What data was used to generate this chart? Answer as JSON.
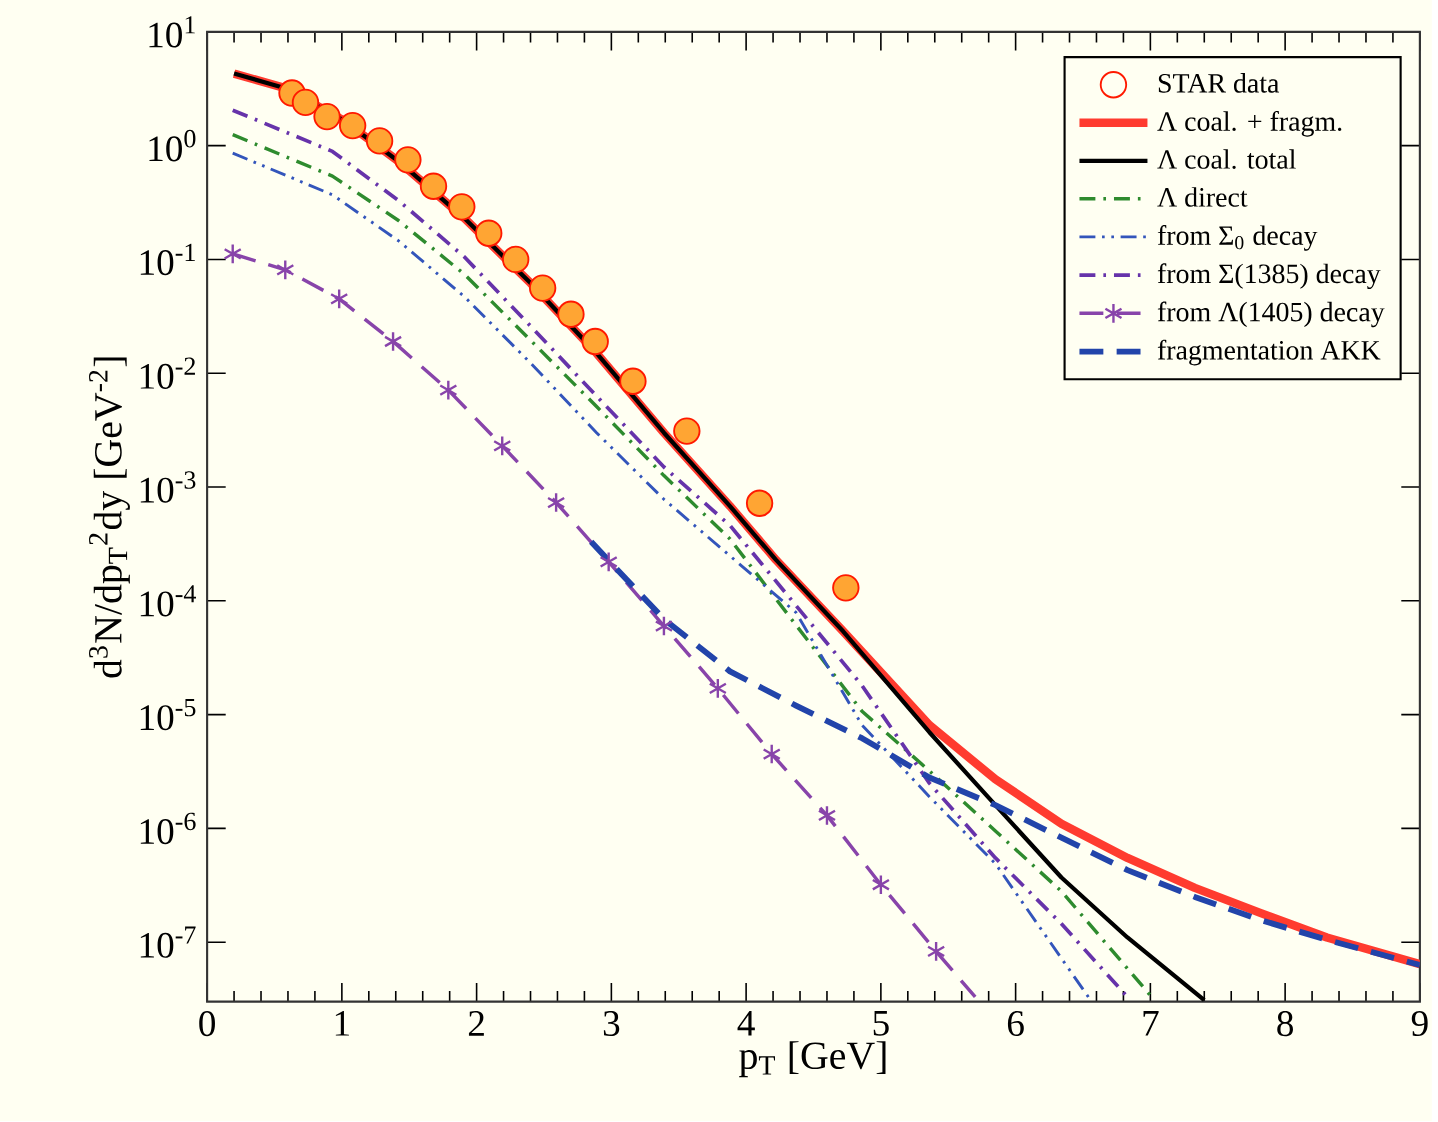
{
  "chart_data": {
    "type": "line",
    "xlabel": "p$_{T}$ [GeV]",
    "ylabel": "d$^{3}$N/dp$_{T}$$^{2}$dy [GeV$^{-2}$]",
    "xlim": [
      0,
      9
    ],
    "xticks": [
      0,
      1,
      2,
      3,
      4,
      5,
      6,
      7,
      8,
      9
    ],
    "ylim": [
      3e-08,
      10
    ],
    "log": "y",
    "yticks": [
      {
        "value": 10,
        "label": "10$^{1}$"
      },
      {
        "value": 1,
        "label": "10$^{0}$"
      },
      {
        "value": 0.1,
        "label": "10$^{-1}$"
      },
      {
        "value": 0.01,
        "label": "10$^{-2}$"
      },
      {
        "value": 0.001,
        "label": "10$^{-3}$"
      },
      {
        "value": 0.0001,
        "label": "10$^{-4}$"
      },
      {
        "value": 1e-05,
        "label": "10$^{-5}$"
      },
      {
        "value": 1e-06,
        "label": "10$^{-6}$"
      },
      {
        "value": 1e-07,
        "label": "10$^{-7}$"
      }
    ],
    "grid": false,
    "legend": "top right",
    "series": [
      {
        "name": "STAR data",
        "type": "scatter",
        "marker": "circle",
        "color": "#ffa533",
        "x": [
          0.63,
          0.73,
          0.89,
          1.08,
          1.28,
          1.49,
          1.68,
          1.89,
          2.09,
          2.29,
          2.49,
          2.7,
          2.88,
          3.16,
          3.56,
          4.1,
          4.74
        ],
        "values": [
          2.9,
          2.4,
          1.8,
          1.5,
          1.1,
          0.75,
          0.44,
          0.29,
          0.17,
          0.1,
          0.056,
          0.033,
          0.019,
          0.0085,
          0.0031,
          0.00072,
          0.00013
        ]
      },
      {
        "name": "Λ coal. + fragm.",
        "line_style": "solid",
        "color": "#ff3b2f",
        "x": [
          0.2,
          0.58,
          1.0,
          1.42,
          1.91,
          2.4,
          2.89,
          3.39,
          3.88,
          4.22,
          4.72,
          5.36,
          5.85,
          6.34,
          6.83,
          7.33,
          7.82,
          8.31,
          9.0
        ],
        "values": [
          4.3,
          3.2,
          1.7,
          0.73,
          0.23,
          0.062,
          0.015,
          0.003,
          0.00068,
          0.00023,
          5.4e-05,
          8.1e-06,
          2.7e-06,
          1.1e-06,
          5.5e-07,
          3e-07,
          1.8e-07,
          1.1e-07,
          6.4e-08
        ]
      },
      {
        "name": "Λ coal. total",
        "line_style": "solid",
        "color": "#000000",
        "x": [
          0.2,
          0.58,
          1.0,
          1.42,
          1.91,
          2.4,
          2.89,
          3.39,
          3.88,
          4.22,
          4.72,
          5.36,
          5.85,
          6.34,
          6.83,
          7.4
        ],
        "values": [
          4.3,
          3.2,
          1.7,
          0.73,
          0.23,
          0.062,
          0.015,
          0.003,
          0.00068,
          0.00023,
          5.4e-05,
          7e-06,
          1.6e-06,
          3.7e-07,
          1.1e-07,
          3.1e-08
        ]
      },
      {
        "name": "Λ direct",
        "line_style": "dashdot",
        "color": "#2e8b2e",
        "x": [
          0.19,
          0.93,
          1.42,
          1.91,
          2.4,
          2.89,
          3.39,
          3.88,
          4.86,
          5.36,
          5.85,
          6.34,
          7.03
        ],
        "values": [
          1.25,
          0.54,
          0.22,
          0.074,
          0.0195,
          0.0051,
          0.00126,
          0.00035,
          1.07e-05,
          3.2e-06,
          9.5e-07,
          2.8e-07,
          3.1e-08
        ]
      },
      {
        "name": "from Σ$_{0}$ decay",
        "line_style": "dashdotdot",
        "color": "#3355bb",
        "x": [
          0.19,
          0.93,
          1.42,
          1.91,
          2.4,
          2.89,
          3.39,
          4.37,
          4.86,
          5.36,
          5.85,
          6.54
        ],
        "values": [
          0.86,
          0.37,
          0.146,
          0.047,
          0.0123,
          0.003,
          0.00078,
          7.9e-05,
          8.1e-06,
          1.9e-06,
          4.9e-07,
          3.3e-08
        ]
      },
      {
        "name": "from Σ(1385) decay",
        "line_style": "dashdot",
        "color": "#6633aa",
        "x": [
          0.19,
          0.93,
          1.42,
          1.91,
          2.4,
          2.89,
          3.39,
          3.88,
          4.86,
          5.36,
          5.85,
          6.34,
          6.83
        ],
        "values": [
          2.05,
          0.89,
          0.33,
          0.105,
          0.026,
          0.0063,
          0.0015,
          0.00046,
          1.8e-05,
          2.5e-06,
          5.5e-07,
          1.45e-07,
          3.3e-08
        ]
      },
      {
        "name": "from Λ(1405) decay",
        "line_style": "dashed",
        "marker": "cross",
        "color": "#8844aa",
        "x": [
          0.19,
          0.58,
          0.98,
          1.38,
          1.79,
          2.19,
          2.59,
          2.98,
          3.39,
          3.79,
          4.19,
          4.6,
          5.0,
          5.41,
          5.7
        ],
        "values": [
          0.112,
          0.081,
          0.045,
          0.019,
          0.0071,
          0.0023,
          0.00073,
          0.00022,
          6e-05,
          1.7e-05,
          4.5e-06,
          1.3e-06,
          3.2e-07,
          8.3e-08,
          3.3e-08
        ]
      },
      {
        "name": "fragmentation AKK",
        "line_style": "dashed",
        "color": "#2244aa",
        "x": [
          2.85,
          3.39,
          3.88,
          4.37,
          4.86,
          5.36,
          5.85,
          6.34,
          6.83,
          7.33,
          7.82,
          8.31,
          9.0
        ],
        "values": [
          0.00033,
          6.9e-05,
          2.4e-05,
          1.2e-05,
          6.2e-06,
          2.8e-06,
          1.6e-06,
          8.3e-07,
          4.3e-07,
          2.5e-07,
          1.56e-07,
          1.05e-07,
          6.3e-08
        ]
      }
    ]
  }
}
